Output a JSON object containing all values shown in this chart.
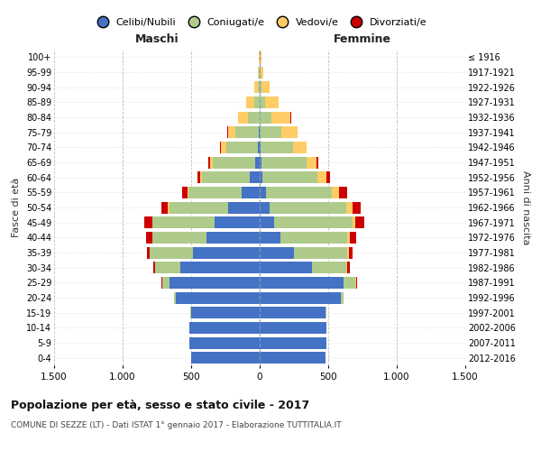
{
  "age_groups": [
    "0-4",
    "5-9",
    "10-14",
    "15-19",
    "20-24",
    "25-29",
    "30-34",
    "35-39",
    "40-44",
    "45-49",
    "50-54",
    "55-59",
    "60-64",
    "65-69",
    "70-74",
    "75-79",
    "80-84",
    "85-89",
    "90-94",
    "95-99",
    "100+"
  ],
  "birth_years": [
    "2012-2016",
    "2007-2011",
    "2002-2006",
    "1997-2001",
    "1992-1996",
    "1987-1991",
    "1982-1986",
    "1977-1981",
    "1972-1976",
    "1967-1971",
    "1962-1966",
    "1957-1961",
    "1952-1956",
    "1947-1951",
    "1942-1946",
    "1937-1941",
    "1932-1936",
    "1927-1931",
    "1922-1926",
    "1917-1921",
    "≤ 1916"
  ],
  "male_celibe": [
    500,
    510,
    510,
    500,
    610,
    660,
    580,
    490,
    390,
    330,
    230,
    130,
    70,
    35,
    15,
    5,
    2,
    1,
    0,
    0,
    0
  ],
  "male_coniugato": [
    0,
    0,
    0,
    5,
    15,
    50,
    180,
    310,
    390,
    450,
    430,
    390,
    350,
    310,
    230,
    170,
    85,
    40,
    15,
    4,
    2
  ],
  "male_vedovo": [
    0,
    0,
    0,
    0,
    0,
    0,
    3,
    4,
    6,
    6,
    8,
    8,
    12,
    18,
    35,
    55,
    70,
    55,
    25,
    8,
    3
  ],
  "male_divorziato": [
    0,
    0,
    0,
    0,
    0,
    4,
    12,
    18,
    45,
    55,
    50,
    35,
    25,
    15,
    8,
    4,
    2,
    1,
    0,
    0,
    0
  ],
  "female_celibe": [
    480,
    490,
    490,
    480,
    590,
    610,
    380,
    250,
    150,
    105,
    70,
    45,
    22,
    10,
    4,
    2,
    1,
    0,
    0,
    0,
    0
  ],
  "female_coniugata": [
    0,
    0,
    0,
    5,
    25,
    90,
    250,
    390,
    490,
    570,
    560,
    480,
    400,
    330,
    240,
    155,
    85,
    40,
    15,
    4,
    2
  ],
  "female_vedova": [
    0,
    0,
    0,
    0,
    0,
    4,
    8,
    12,
    18,
    25,
    45,
    55,
    65,
    75,
    95,
    120,
    140,
    100,
    60,
    25,
    8
  ],
  "female_divorziata": [
    0,
    0,
    0,
    0,
    0,
    4,
    18,
    25,
    45,
    65,
    65,
    55,
    25,
    12,
    4,
    2,
    1,
    0,
    0,
    0,
    0
  ],
  "color_celibe": "#4472C4",
  "color_coniugato": "#AECB8B",
  "color_vedovo": "#FFCC66",
  "color_divorziato": "#CC0000",
  "title": "Popolazione per età, sesso e stato civile - 2017",
  "subtitle": "COMUNE DI SEZZE (LT) - Dati ISTAT 1° gennaio 2017 - Elaborazione TUTTITALIA.IT",
  "xlabel_maschi": "Maschi",
  "xlabel_femmine": "Femmine",
  "ylabel_left": "Fasce di età",
  "ylabel_right": "Anni di nascita",
  "xlim": 1500,
  "xticks": [
    -1500,
    -1000,
    -500,
    0,
    500,
    1000,
    1500
  ],
  "xticklabels": [
    "1.500",
    "1.000",
    "500",
    "0",
    "500",
    "1.000",
    "1.500"
  ],
  "bg_color": "#ffffff",
  "grid_color": "#cccccc"
}
